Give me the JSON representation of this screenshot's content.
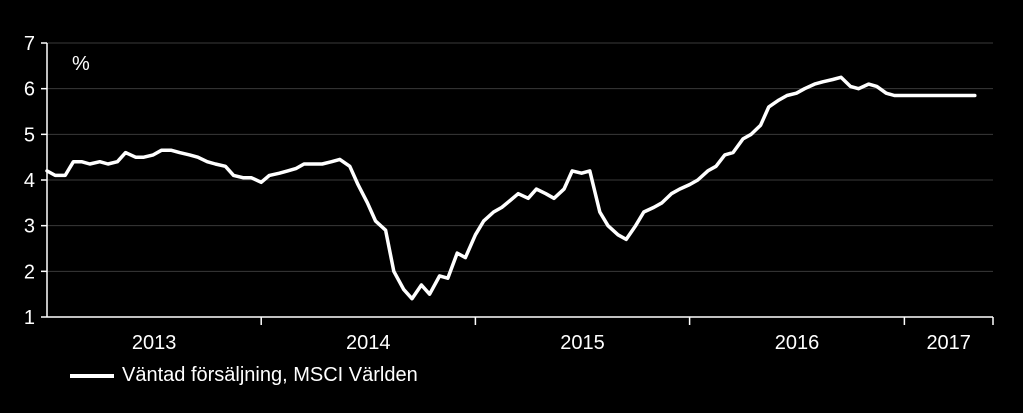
{
  "chart_data": {
    "type": "line",
    "unit_label": "%",
    "ylim": [
      1,
      7
    ],
    "yticks": [
      "1",
      "2",
      "3",
      "4",
      "5",
      "6",
      "7"
    ],
    "year_labels": [
      "2013",
      "2014",
      "2015",
      "2016",
      "2017"
    ],
    "x_range": [
      "2013-01-01",
      "2017-06-01"
    ],
    "grid": true,
    "colors": {
      "background": "#000000",
      "line": "#ffffff",
      "grid": "#3a3a3a",
      "axis": "#ffffff"
    },
    "series": [
      {
        "name": "Väntad försäljning, MSCI Världen",
        "x": [
          "2013-01-01",
          "2013-01-15",
          "2013-02-01",
          "2013-02-15",
          "2013-03-01",
          "2013-03-15",
          "2013-04-01",
          "2013-04-15",
          "2013-05-01",
          "2013-05-15",
          "2013-06-01",
          "2013-06-15",
          "2013-07-01",
          "2013-07-15",
          "2013-08-01",
          "2013-08-15",
          "2013-09-01",
          "2013-09-15",
          "2013-10-01",
          "2013-10-15",
          "2013-11-01",
          "2013-11-15",
          "2013-12-01",
          "2013-12-15",
          "2014-01-01",
          "2014-01-15",
          "2014-02-01",
          "2014-02-15",
          "2014-03-01",
          "2014-03-15",
          "2014-04-01",
          "2014-04-15",
          "2014-05-01",
          "2014-05-15",
          "2014-06-01",
          "2014-06-15",
          "2014-07-01",
          "2014-07-15",
          "2014-08-01",
          "2014-08-15",
          "2014-09-01",
          "2014-09-15",
          "2014-10-01",
          "2014-10-15",
          "2014-11-01",
          "2014-11-15",
          "2014-12-01",
          "2014-12-15",
          "2015-01-01",
          "2015-01-15",
          "2015-02-01",
          "2015-02-15",
          "2015-03-01",
          "2015-03-15",
          "2015-04-01",
          "2015-04-15",
          "2015-05-01",
          "2015-05-15",
          "2015-06-01",
          "2015-06-15",
          "2015-07-01",
          "2015-07-15",
          "2015-08-01",
          "2015-08-15",
          "2015-09-01",
          "2015-09-15",
          "2015-10-01",
          "2015-10-15",
          "2015-11-01",
          "2015-11-15",
          "2015-12-01",
          "2015-12-15",
          "2016-01-01",
          "2016-01-15",
          "2016-02-01",
          "2016-02-15",
          "2016-03-01",
          "2016-03-15",
          "2016-04-01",
          "2016-04-15",
          "2016-05-01",
          "2016-05-15",
          "2016-06-01",
          "2016-06-15",
          "2016-07-01",
          "2016-07-15",
          "2016-08-01",
          "2016-08-15",
          "2016-09-01",
          "2016-09-15",
          "2016-10-01",
          "2016-10-15",
          "2016-11-01",
          "2016-11-15",
          "2016-12-01",
          "2016-12-15",
          "2017-01-01",
          "2017-01-15",
          "2017-02-01",
          "2017-02-15",
          "2017-03-01",
          "2017-03-15",
          "2017-04-01",
          "2017-04-15",
          "2017-05-01"
        ],
        "y": [
          4.2,
          4.1,
          4.1,
          4.4,
          4.4,
          4.35,
          4.4,
          4.35,
          4.4,
          4.6,
          4.5,
          4.5,
          4.55,
          4.65,
          4.65,
          4.6,
          4.55,
          4.5,
          4.4,
          4.35,
          4.3,
          4.1,
          4.05,
          4.05,
          3.95,
          4.1,
          4.15,
          4.2,
          4.25,
          4.35,
          4.35,
          4.35,
          4.4,
          4.45,
          4.3,
          3.9,
          3.5,
          3.1,
          2.9,
          2.0,
          1.6,
          1.4,
          1.7,
          1.5,
          1.9,
          1.85,
          2.4,
          2.3,
          2.8,
          3.1,
          3.3,
          3.4,
          3.55,
          3.7,
          3.6,
          3.8,
          3.7,
          3.6,
          3.8,
          4.2,
          4.15,
          4.2,
          3.3,
          3.0,
          2.8,
          2.7,
          3.0,
          3.3,
          3.4,
          3.5,
          3.7,
          3.8,
          3.9,
          4.0,
          4.2,
          4.3,
          4.55,
          4.6,
          4.9,
          5.0,
          5.2,
          5.6,
          5.75,
          5.85,
          5.9,
          6.0,
          6.1,
          6.15,
          6.2,
          6.25,
          6.05,
          6.0,
          6.1,
          6.05,
          5.9,
          5.85,
          5.85,
          5.85,
          5.85,
          5.85,
          5.85,
          5.85,
          5.85,
          5.85,
          5.85
        ]
      }
    ]
  }
}
